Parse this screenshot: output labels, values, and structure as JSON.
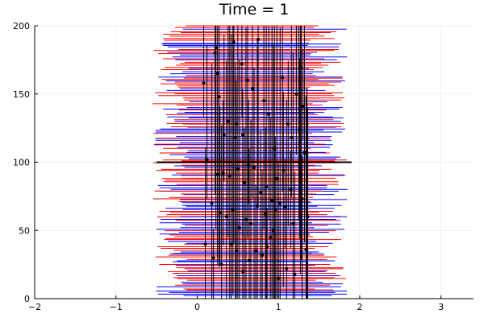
{
  "chart_data": {
    "type": "scatter",
    "title": "Time = 1",
    "xlabel": "",
    "ylabel": "",
    "xlim": [
      -2,
      3.4
    ],
    "ylim": [
      0,
      200
    ],
    "xticks": [
      -2,
      -1,
      0,
      1,
      2,
      3
    ],
    "yticks": [
      0,
      50,
      100,
      150,
      200
    ],
    "xtick_labels": [
      "−2",
      "−1",
      "0",
      "1",
      "2",
      "3"
    ],
    "ytick_labels": [
      "0",
      "50",
      "100",
      "150",
      "200"
    ],
    "grid": true,
    "legend": "none",
    "colors": {
      "red_series": "#ff0000",
      "blue_series": "#0000ff",
      "points": "#000000",
      "reference_line": "#000000"
    },
    "reference_line": {
      "x_start": -0.5,
      "x_end": 1.9,
      "y": 100
    },
    "points": [
      [
        0.08,
        158
      ],
      [
        0.22,
        180
      ],
      [
        0.23,
        184
      ],
      [
        0.25,
        165
      ],
      [
        0.27,
        148
      ],
      [
        0.33,
        120
      ],
      [
        0.38,
        130
      ],
      [
        0.45,
        188
      ],
      [
        0.48,
        128
      ],
      [
        0.55,
        172
      ],
      [
        0.62,
        160
      ],
      [
        0.68,
        154
      ],
      [
        0.75,
        190
      ],
      [
        0.82,
        145
      ],
      [
        0.88,
        135
      ],
      [
        0.95,
        110
      ],
      [
        1.05,
        162
      ],
      [
        1.12,
        128
      ],
      [
        1.22,
        150
      ],
      [
        1.27,
        170
      ],
      [
        1.3,
        141
      ],
      [
        1.32,
        107
      ],
      [
        0.12,
        102
      ],
      [
        0.25,
        91
      ],
      [
        0.32,
        92
      ],
      [
        0.4,
        90
      ],
      [
        0.5,
        95
      ],
      [
        0.58,
        85
      ],
      [
        0.63,
        98
      ],
      [
        0.7,
        96
      ],
      [
        0.78,
        78
      ],
      [
        0.85,
        82
      ],
      [
        0.92,
        72
      ],
      [
        0.98,
        88
      ],
      [
        1.06,
        94
      ],
      [
        1.15,
        80
      ],
      [
        1.25,
        100
      ],
      [
        1.28,
        102
      ],
      [
        0.18,
        70
      ],
      [
        0.28,
        63
      ],
      [
        0.36,
        60
      ],
      [
        0.44,
        65
      ],
      [
        0.52,
        52
      ],
      [
        0.6,
        58
      ],
      [
        0.66,
        55
      ],
      [
        0.74,
        68
      ],
      [
        0.84,
        62
      ],
      [
        0.9,
        45
      ],
      [
        0.96,
        65
      ],
      [
        1.02,
        70
      ],
      [
        1.08,
        67
      ],
      [
        1.18,
        55
      ],
      [
        1.29,
        73
      ],
      [
        1.35,
        66
      ],
      [
        0.1,
        40
      ],
      [
        0.2,
        30
      ],
      [
        0.3,
        25
      ],
      [
        0.42,
        40
      ],
      [
        0.48,
        35
      ],
      [
        0.56,
        20
      ],
      [
        0.64,
        28
      ],
      [
        0.72,
        35
      ],
      [
        0.8,
        32
      ],
      [
        0.86,
        38
      ],
      [
        0.94,
        50
      ],
      [
        1.0,
        15
      ],
      [
        1.1,
        22
      ],
      [
        1.2,
        18
      ],
      [
        1.34,
        36
      ],
      [
        1.36,
        60
      ],
      [
        1.26,
        124
      ],
      [
        1.16,
        118
      ],
      [
        0.56,
        120
      ],
      [
        0.47,
        118
      ]
    ]
  }
}
